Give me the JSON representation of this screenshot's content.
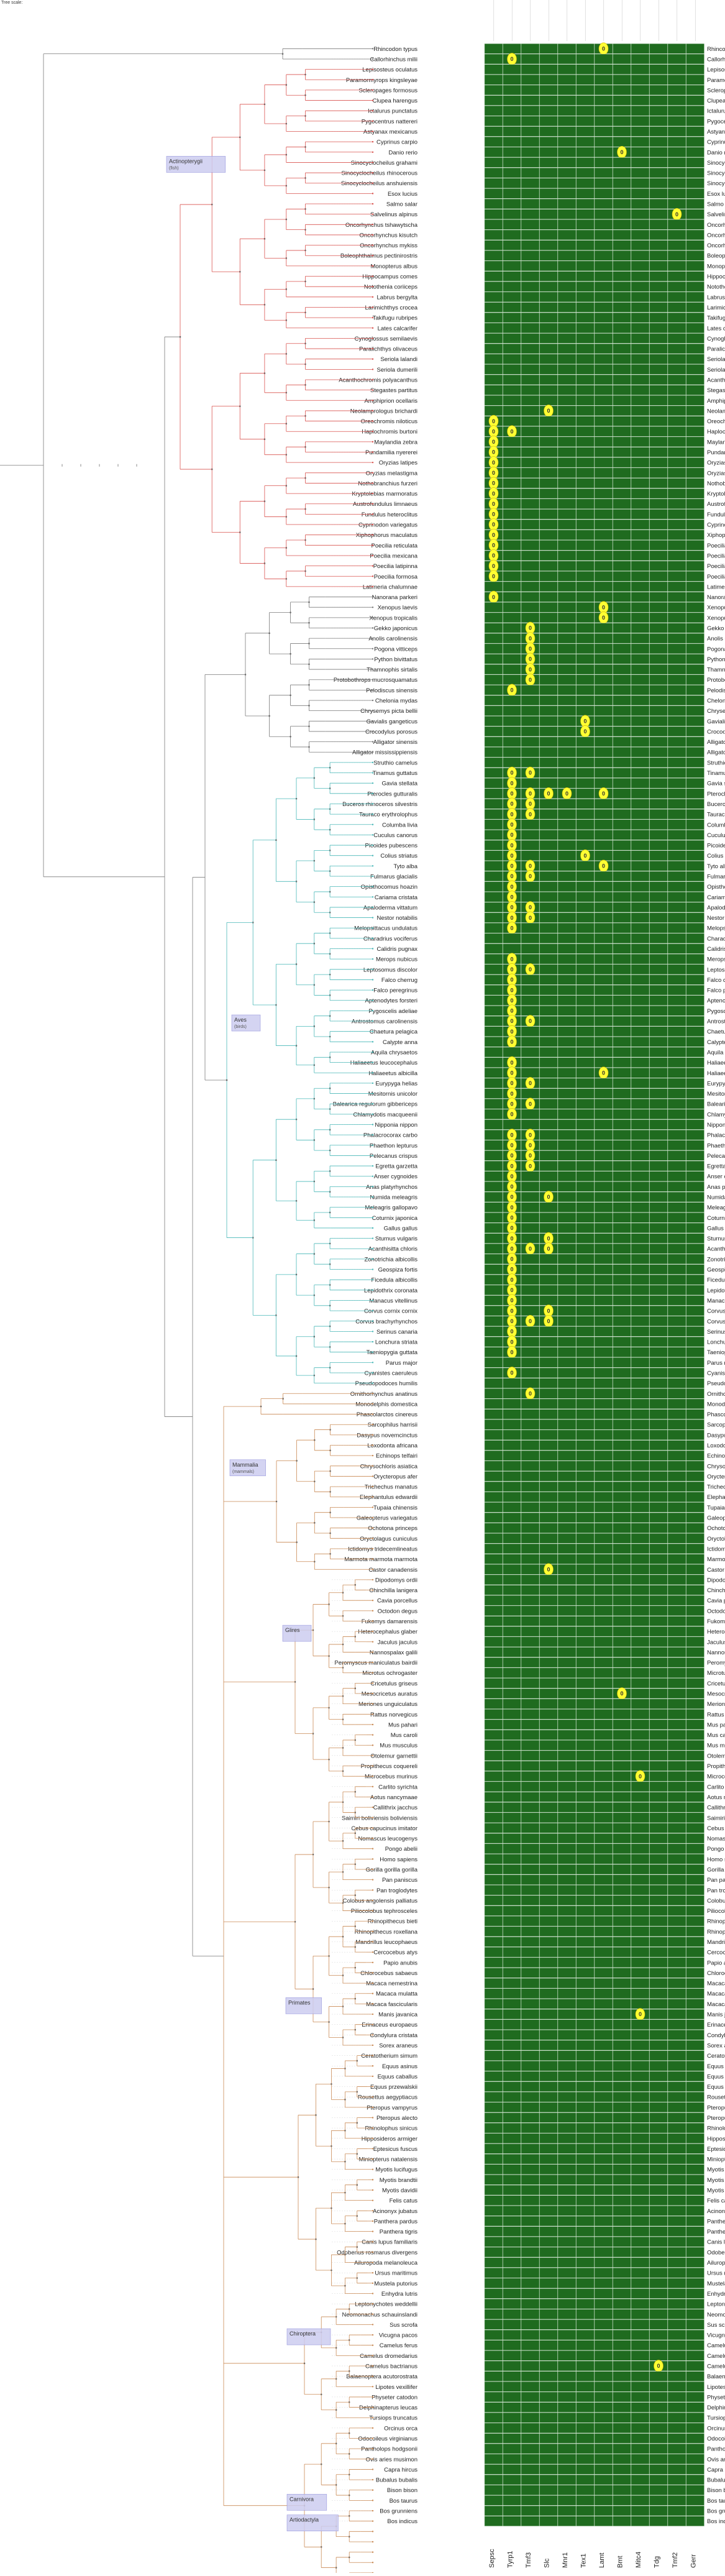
{
  "header": {
    "note": "Tree scale:"
  },
  "columns": [
    "Sepsc",
    "Tyrp1",
    "Tmf3",
    "Slc",
    "Mnr1",
    "Tex1",
    "Lamt",
    "Bmt",
    "Mitc4",
    "Tdg",
    "Tmf2",
    "Gerr"
  ],
  "colors": {
    "present": "#1f6b1f",
    "cell_grid": "#a8c8a8",
    "absent_badge": "#ffff33",
    "branch_default": "#7a7a7a",
    "branch_fish": "#d9534f",
    "branch_bird": "#4ab8b8",
    "branch_mammal": "#c98a55",
    "clade_box": "#ccccf0"
  },
  "clades": [
    {
      "label": "Actinopterygii",
      "sub": "(fish)"
    },
    {
      "label": "Aves",
      "sub": "(birds)"
    },
    {
      "label": "Mammalia",
      "sub": "(mammals)"
    },
    {
      "label": "Glires",
      "sub": ""
    },
    {
      "label": "Primates",
      "sub": ""
    },
    {
      "label": "Chiroptera",
      "sub": ""
    },
    {
      "label": "Carnivora",
      "sub": ""
    },
    {
      "label": "Artiodactyla",
      "sub": ""
    }
  ],
  "species": [
    [
      "Rhincodon typus",
      [
        6
      ]
    ],
    [
      "Callorhinchus milii",
      [
        1
      ]
    ],
    [
      "Lepisosteus oculatus",
      []
    ],
    [
      "Paramormyrops kingsleyae",
      []
    ],
    [
      "Scleropages formosus",
      []
    ],
    [
      "Clupea harengus",
      []
    ],
    [
      "Ictalurus punctatus",
      []
    ],
    [
      "Pygocentrus nattereri",
      []
    ],
    [
      "Astyanax mexicanus",
      []
    ],
    [
      "Cyprinus carpio",
      []
    ],
    [
      "Danio rerio",
      [
        7
      ]
    ],
    [
      "Sinocyclocheilus grahami",
      []
    ],
    [
      "Sinocyclocheilus rhinocerous",
      []
    ],
    [
      "Sinocyclocheilus anshuiensis",
      []
    ],
    [
      "Esox lucius",
      []
    ],
    [
      "Salmo salar",
      []
    ],
    [
      "Salvelinus alpinus",
      [
        10
      ]
    ],
    [
      "Oncorhynchus tshawytscha",
      []
    ],
    [
      "Oncorhynchus kisutch",
      []
    ],
    [
      "Oncorhynchus mykiss",
      []
    ],
    [
      "Boleophthalmus pectinirostris",
      []
    ],
    [
      "Monopterus albus",
      []
    ],
    [
      "Hippocampus comes",
      []
    ],
    [
      "Notothenia coriiceps",
      []
    ],
    [
      "Labrus bergylta",
      []
    ],
    [
      "Larimichthys crocea",
      []
    ],
    [
      "Takifugu rubripes",
      []
    ],
    [
      "Lates calcarifer",
      []
    ],
    [
      "Cynoglossus semilaevis",
      []
    ],
    [
      "Paralichthys olivaceus",
      []
    ],
    [
      "Seriola lalandi",
      []
    ],
    [
      "Seriola dumerili",
      []
    ],
    [
      "Acanthochromis polyacanthus",
      []
    ],
    [
      "Stegastes partitus",
      []
    ],
    [
      "Amphiprion ocellaris",
      []
    ],
    [
      "Neolamprologus brichardi",
      [
        3
      ]
    ],
    [
      "Oreochromis niloticus",
      [
        0
      ]
    ],
    [
      "Haplochromis burtoni",
      [
        0,
        1
      ]
    ],
    [
      "Maylandia zebra",
      [
        0
      ]
    ],
    [
      "Pundamilia nyererei",
      [
        0
      ]
    ],
    [
      "Oryzias latipes",
      [
        0
      ]
    ],
    [
      "Oryzias melastigma",
      [
        0
      ]
    ],
    [
      "Nothobranchius furzeri",
      [
        0
      ]
    ],
    [
      "Kryptolebias marmoratus",
      [
        0
      ]
    ],
    [
      "Austrofundulus limnaeus",
      [
        0
      ]
    ],
    [
      "Fundulus heteroclitus",
      [
        0
      ]
    ],
    [
      "Cyprinodon variegatus",
      [
        0
      ]
    ],
    [
      "Xiphophorus maculatus",
      [
        0
      ]
    ],
    [
      "Poecilia reticulata",
      [
        0
      ]
    ],
    [
      "Poecilia mexicana",
      [
        0
      ]
    ],
    [
      "Poecilia latipinna",
      [
        0
      ]
    ],
    [
      "Poecilia formosa",
      [
        0
      ]
    ],
    [
      "Latimeria chalumnae",
      []
    ],
    [
      "Nanorana parkeri",
      [
        0
      ]
    ],
    [
      "Xenopus laevis",
      [
        6
      ]
    ],
    [
      "Xenopus tropicalis",
      [
        6
      ]
    ],
    [
      "Gekko japonicus",
      [
        2
      ]
    ],
    [
      "Anolis carolinensis",
      [
        2
      ]
    ],
    [
      "Pogona vitticeps",
      [
        2
      ]
    ],
    [
      "Python bivittatus",
      [
        2
      ]
    ],
    [
      "Thamnophis sirtalis",
      [
        2
      ]
    ],
    [
      "Protobothrops mucrosquamatus",
      [
        2
      ]
    ],
    [
      "Pelodiscus sinensis",
      [
        1
      ]
    ],
    [
      "Chelonia mydas",
      []
    ],
    [
      "Chrysemys picta bellii",
      []
    ],
    [
      "Gavialis gangeticus",
      [
        5
      ]
    ],
    [
      "Crocodylus porosus",
      [
        5
      ]
    ],
    [
      "Alligator sinensis",
      []
    ],
    [
      "Alligator mississippiensis",
      []
    ],
    [
      "Struthio camelus",
      []
    ],
    [
      "Tinamus guttatus",
      [
        1,
        2
      ]
    ],
    [
      "Gavia stellata",
      [
        1
      ]
    ],
    [
      "Pterocles gutturalis",
      [
        1,
        2,
        3,
        4,
        6
      ]
    ],
    [
      "Buceros rhinoceros silvestris",
      [
        1,
        2
      ]
    ],
    [
      "Tauraco erythrolophus",
      [
        1,
        2
      ]
    ],
    [
      "Columba livia",
      [
        1
      ]
    ],
    [
      "Cuculus canorus",
      [
        1
      ]
    ],
    [
      "Picoides pubescens",
      [
        1
      ]
    ],
    [
      "Colius striatus",
      [
        1,
        5
      ]
    ],
    [
      "Tyto alba",
      [
        1,
        2,
        6
      ]
    ],
    [
      "Fulmarus glacialis",
      [
        1,
        2
      ]
    ],
    [
      "Opisthocomus hoazin",
      [
        1
      ]
    ],
    [
      "Cariama cristata",
      [
        1
      ]
    ],
    [
      "Apaloderma vittatum",
      [
        1,
        2
      ]
    ],
    [
      "Nestor notabilis",
      [
        1,
        2
      ]
    ],
    [
      "Melopsittacus undulatus",
      [
        1
      ]
    ],
    [
      "Charadrius vociferus",
      []
    ],
    [
      "Calidris pugnax",
      []
    ],
    [
      "Merops nubicus",
      [
        1
      ]
    ],
    [
      "Leptosomus discolor",
      [
        1,
        2
      ]
    ],
    [
      "Falco cherrug",
      [
        1
      ]
    ],
    [
      "Falco peregrinus",
      [
        1
      ]
    ],
    [
      "Aptenodytes forsteri",
      [
        1
      ]
    ],
    [
      "Pygoscelis adeliae",
      [
        1
      ]
    ],
    [
      "Antrostomus carolinensis",
      [
        1,
        2
      ]
    ],
    [
      "Chaetura pelagica",
      [
        1
      ]
    ],
    [
      "Calypte anna",
      [
        1
      ]
    ],
    [
      "Aquila chrysaetos",
      []
    ],
    [
      "Haliaeetus leucocephalus",
      [
        1
      ]
    ],
    [
      "Haliaeetus albicilla",
      [
        1,
        6
      ]
    ],
    [
      "Eurypyga helias",
      [
        1,
        2
      ]
    ],
    [
      "Mesitornis unicolor",
      [
        1
      ]
    ],
    [
      "Balearica regulorum gibbericeps",
      [
        1,
        2
      ]
    ],
    [
      "Chlamydotis macqueenii",
      [
        1
      ]
    ],
    [
      "Nipponia nippon",
      []
    ],
    [
      "Phalacrocorax carbo",
      [
        1,
        2
      ]
    ],
    [
      "Phaethon lepturus",
      [
        1,
        2
      ]
    ],
    [
      "Pelecanus crispus",
      [
        1,
        2
      ]
    ],
    [
      "Egretta garzetta",
      [
        1,
        2
      ]
    ],
    [
      "Anser cygnoides",
      [
        1
      ]
    ],
    [
      "Anas platyrhynchos",
      [
        1
      ]
    ],
    [
      "Numida meleagris",
      [
        1,
        3
      ]
    ],
    [
      "Meleagris gallopavo",
      [
        1
      ]
    ],
    [
      "Coturnix japonica",
      [
        1
      ]
    ],
    [
      "Gallus gallus",
      [
        1
      ]
    ],
    [
      "Sturnus vulgaris",
      [
        1,
        3
      ]
    ],
    [
      "Acanthisitta chloris",
      [
        1,
        2,
        3
      ]
    ],
    [
      "Zonotrichia albicollis",
      [
        1
      ]
    ],
    [
      "Geospiza fortis",
      [
        1
      ]
    ],
    [
      "Ficedula albicollis",
      [
        1
      ]
    ],
    [
      "Lepidothrix coronata",
      [
        1
      ]
    ],
    [
      "Manacus vitellinus",
      [
        1
      ]
    ],
    [
      "Corvus cornix cornix",
      [
        1,
        3
      ]
    ],
    [
      "Corvus brachyrhynchos",
      [
        1,
        2,
        3
      ]
    ],
    [
      "Serinus canaria",
      [
        1
      ]
    ],
    [
      "Lonchura striata",
      [
        1
      ]
    ],
    [
      "Taeniopygia guttata",
      [
        1
      ]
    ],
    [
      "Parus major",
      []
    ],
    [
      "Cyanistes caeruleus",
      [
        1
      ]
    ],
    [
      "Pseudopodoces humilis",
      []
    ],
    [
      "Ornithorhynchus anatinus",
      [
        2
      ]
    ],
    [
      "Monodelphis domestica",
      []
    ],
    [
      "Phascolarctos cinereus",
      []
    ],
    [
      "Sarcophilus harrisii",
      []
    ],
    [
      "Dasypus novemcinctus",
      []
    ],
    [
      "Loxodonta africana",
      []
    ],
    [
      "Echinops telfairi",
      []
    ],
    [
      "Chrysochloris asiatica",
      []
    ],
    [
      "Orycteropus afer",
      []
    ],
    [
      "Trichechus manatus",
      []
    ],
    [
      "Elephantulus edwardii",
      []
    ],
    [
      "Tupaia chinensis",
      []
    ],
    [
      "Galeopterus variegatus",
      []
    ],
    [
      "Ochotona princeps",
      []
    ],
    [
      "Oryctolagus cuniculus",
      []
    ],
    [
      "Ictidomys tridecemlineatus",
      []
    ],
    [
      "Marmota marmota marmota",
      []
    ],
    [
      "Castor canadensis",
      [
        3
      ]
    ],
    [
      "Dipodomys ordii",
      []
    ],
    [
      "Chinchilla lanigera",
      []
    ],
    [
      "Cavia porcellus",
      []
    ],
    [
      "Octodon degus",
      []
    ],
    [
      "Fukomys damarensis",
      []
    ],
    [
      "Heterocephalus glaber",
      []
    ],
    [
      "Jaculus jaculus",
      []
    ],
    [
      "Nannospalax galili",
      []
    ],
    [
      "Peromyscus maniculatus bairdii",
      []
    ],
    [
      "Microtus ochrogaster",
      []
    ],
    [
      "Cricetulus griseus",
      []
    ],
    [
      "Mesocricetus auratus",
      [
        7
      ]
    ],
    [
      "Meriones unguiculatus",
      []
    ],
    [
      "Rattus norvegicus",
      []
    ],
    [
      "Mus pahari",
      []
    ],
    [
      "Mus caroli",
      []
    ],
    [
      "Mus musculus",
      []
    ],
    [
      "Otolemur garnettii",
      []
    ],
    [
      "Propithecus coquereli",
      []
    ],
    [
      "Microcebus murinus",
      [
        8
      ]
    ],
    [
      "Carlito syrichta",
      []
    ],
    [
      "Aotus nancymaae",
      []
    ],
    [
      "Callithrix jacchus",
      []
    ],
    [
      "Saimiri boliviensis boliviensis",
      []
    ],
    [
      "Cebus capucinus imitator",
      []
    ],
    [
      "Nomascus leucogenys",
      []
    ],
    [
      "Pongo abelii",
      []
    ],
    [
      "Homo sapiens",
      []
    ],
    [
      "Gorilla gorilla gorilla",
      []
    ],
    [
      "Pan paniscus",
      []
    ],
    [
      "Pan troglodytes",
      []
    ],
    [
      "Colobus angolensis palliatus",
      []
    ],
    [
      "Piliocolobus tephrosceles",
      []
    ],
    [
      "Rhinopithecus bieti",
      []
    ],
    [
      "Rhinopithecus roxellana",
      []
    ],
    [
      "Mandrillus leucophaeus",
      []
    ],
    [
      "Cercocebus atys",
      []
    ],
    [
      "Papio anubis",
      []
    ],
    [
      "Chlorocebus sabaeus",
      []
    ],
    [
      "Macaca nemestrina",
      []
    ],
    [
      "Macaca mulatta",
      []
    ],
    [
      "Macaca fascicularis",
      []
    ],
    [
      "Manis javanica",
      [
        8
      ]
    ],
    [
      "Erinaceus europaeus",
      []
    ],
    [
      "Condylura cristata",
      []
    ],
    [
      "Sorex araneus",
      []
    ],
    [
      "Ceratotherium simum",
      []
    ],
    [
      "Equus asinus",
      []
    ],
    [
      "Equus caballus",
      []
    ],
    [
      "Equus przewalskii",
      []
    ],
    [
      "Rousettus aegyptiacus",
      []
    ],
    [
      "Pteropus vampyrus",
      []
    ],
    [
      "Pteropus alecto",
      []
    ],
    [
      "Rhinolophus sinicus",
      []
    ],
    [
      "Hipposideros armiger",
      []
    ],
    [
      "Eptesicus fuscus",
      []
    ],
    [
      "Miniopterus natalensis",
      []
    ],
    [
      "Myotis lucifugus",
      []
    ],
    [
      "Myotis brandtii",
      []
    ],
    [
      "Myotis davidii",
      []
    ],
    [
      "Felis catus",
      []
    ],
    [
      "Acinonyx jubatus",
      []
    ],
    [
      "Panthera pardus",
      []
    ],
    [
      "Panthera tigris",
      []
    ],
    [
      "Canis lupus familiaris",
      []
    ],
    [
      "Odobenus rosmarus divergens",
      []
    ],
    [
      "Ailuropoda melanoleuca",
      []
    ],
    [
      "Ursus maritimus",
      []
    ],
    [
      "Mustela putorius",
      []
    ],
    [
      "Enhydra lutris",
      []
    ],
    [
      "Leptonychotes weddellii",
      []
    ],
    [
      "Neomonachus schauinslandi",
      []
    ],
    [
      "Sus scrofa",
      []
    ],
    [
      "Vicugna pacos",
      []
    ],
    [
      "Camelus ferus",
      []
    ],
    [
      "Camelus dromedarius",
      []
    ],
    [
      "Camelus bactrianus",
      [
        9
      ]
    ],
    [
      "Balaenoptera acutorostrata",
      []
    ],
    [
      "Lipotes vexillifer",
      []
    ],
    [
      "Physeter catodon",
      []
    ],
    [
      "Delphinapterus leucas",
      []
    ],
    [
      "Tursiops truncatus",
      []
    ],
    [
      "Orcinus orca",
      []
    ],
    [
      "Odocoileus virginianus",
      []
    ],
    [
      "Pantholops hodgsonii",
      []
    ],
    [
      "Ovis aries musimon",
      []
    ],
    [
      "Capra hircus",
      []
    ],
    [
      "Bubalus bubalis",
      []
    ],
    [
      "Bison bison",
      []
    ],
    [
      "Bos taurus",
      []
    ],
    [
      "Bos grunniens",
      []
    ],
    [
      "Bos indicus",
      []
    ]
  ],
  "absent_symbol": "0"
}
